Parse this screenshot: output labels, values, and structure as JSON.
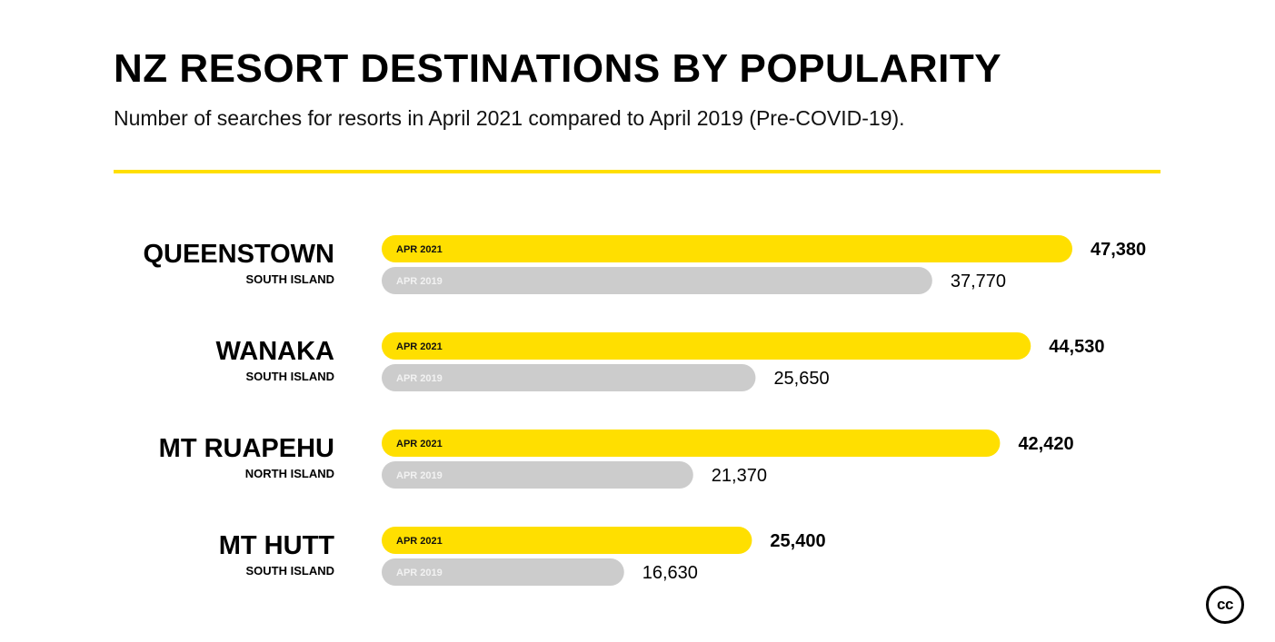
{
  "title": "NZ RESORT DESTINATIONS BY POPULARITY",
  "subtitle": "Number of searches for resorts in April 2021 compared to April 2019 (Pre-COVID-19).",
  "logo_text": "cc",
  "colors": {
    "apr2021": "#ffdf00",
    "apr2019": "#cccccc",
    "accent": "#ffdf00"
  },
  "chart_data": {
    "type": "bar",
    "orientation": "horizontal",
    "categories": [
      "QUEENSTOWN",
      "WANAKA",
      "MT RUAPEHU",
      "MT HUTT"
    ],
    "category_sublabels": [
      "SOUTH ISLAND",
      "SOUTH ISLAND",
      "NORTH ISLAND",
      "SOUTH ISLAND"
    ],
    "series": [
      {
        "name": "APR 2021",
        "values": [
          47380,
          44530,
          42420,
          25400
        ],
        "value_labels": [
          "47,380",
          "44,530",
          "42,420",
          "25,400"
        ]
      },
      {
        "name": "APR 2019",
        "values": [
          37770,
          25650,
          21370,
          16630
        ],
        "value_labels": [
          "37,770",
          "25,650",
          "21,370",
          "16,630"
        ]
      }
    ],
    "xlim": [
      0,
      47380
    ],
    "grid": false,
    "legend": "in-bar labels"
  }
}
